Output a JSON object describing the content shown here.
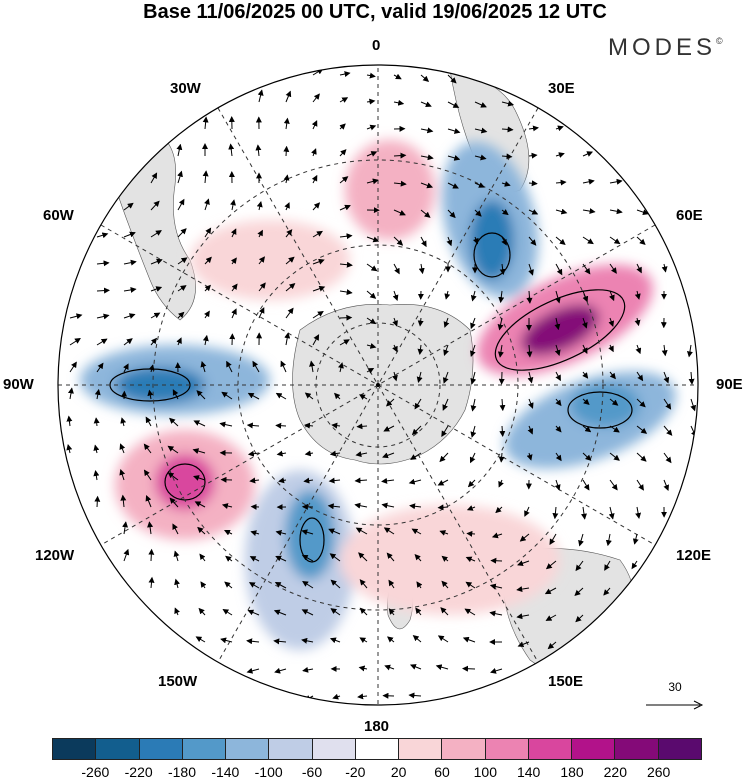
{
  "title": "Base 11/06/2025 00 UTC, valid 19/06/2025 12 UTC",
  "brand": "MODES",
  "brand_mark": "©",
  "projection": "south-polar-stereographic",
  "longitude_labels": {
    "top": "0",
    "upper_left": "30W",
    "upper_right": "30E",
    "mid_upper_left": "60W",
    "mid_upper_right": "60E",
    "left": "90W",
    "right": "90E",
    "mid_lower_left": "120W",
    "mid_lower_right": "120E",
    "lower_left": "150W",
    "lower_right": "150E",
    "bottom": "180"
  },
  "reference_vector": {
    "label": "30",
    "icon": "arrow-right-icon"
  },
  "colorbar": {
    "tick_labels": [
      "-260",
      "-220",
      "-180",
      "-140",
      "-100",
      "-60",
      "-20",
      "20",
      "60",
      "100",
      "140",
      "180",
      "220",
      "260"
    ],
    "colors": [
      "#0b3a5c",
      "#125e8e",
      "#2b7bb6",
      "#5399c9",
      "#8db6db",
      "#bfcde6",
      "#e0e0ee",
      "#ffffff",
      "#f9d6d8",
      "#f4b1c3",
      "#ec83b2",
      "#d9469e",
      "#b2128a",
      "#840a78",
      "#5a0a6e"
    ]
  },
  "colors": {
    "land": "#e3e3e3",
    "ocean": "#ffffff",
    "grid": "#333333",
    "arrow": "#000000",
    "contour": "#000000"
  }
}
